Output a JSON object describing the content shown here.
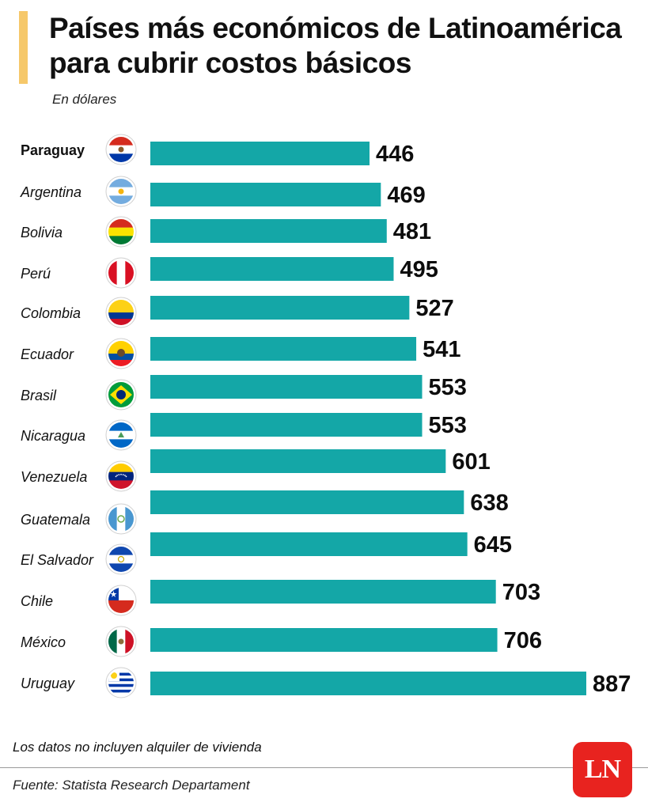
{
  "header": {
    "title": "Países más económicos de Latinoamérica para cubrir costos básicos",
    "subtitle": "En dólares",
    "accent_color": "#f6c86a"
  },
  "chart_data": {
    "type": "bar",
    "orientation": "horizontal",
    "title": "Países más económicos de Latinoamérica para cubrir costos básicos",
    "ylabel": "En dólares",
    "bar_color": "#14a7a7",
    "categories": [
      "Paraguay",
      "Argentina",
      "Bolivia",
      "Perú",
      "Colombia",
      "Ecuador",
      "Brasil",
      "Nicaragua",
      "Venezuela",
      "Guatemala",
      "El Salvador",
      "Chile",
      "México",
      "Uruguay"
    ],
    "values": [
      446,
      469,
      481,
      495,
      527,
      541,
      553,
      553,
      601,
      638,
      645,
      703,
      706,
      887
    ],
    "highlighted": "Paraguay",
    "flag_icons": [
      "paraguay-flag-icon",
      "argentina-flag-icon",
      "bolivia-flag-icon",
      "peru-flag-icon",
      "colombia-flag-icon",
      "ecuador-flag-icon",
      "brazil-flag-icon",
      "nicaragua-flag-icon",
      "venezuela-flag-icon",
      "guatemala-flag-icon",
      "el-salvador-flag-icon",
      "chile-flag-icon",
      "mexico-flag-icon",
      "uruguay-flag-icon"
    ],
    "grid": false,
    "legend": "none"
  },
  "footer": {
    "note": "Los datos no incluyen alquiler de vivienda",
    "source": "Fuente: Statista Research Departament",
    "logo_text": "LN",
    "logo_color": "#e8231f"
  }
}
